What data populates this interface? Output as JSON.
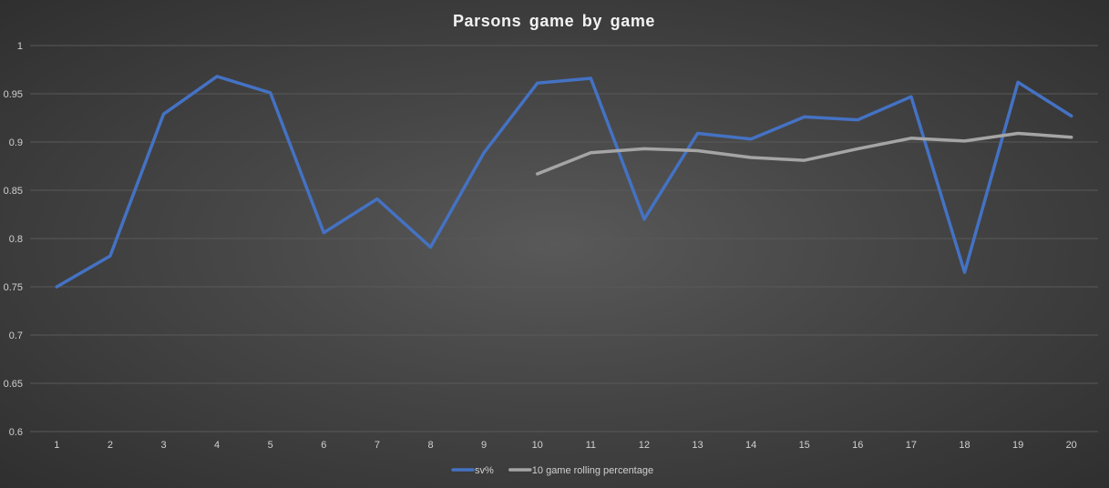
{
  "chart_data": {
    "type": "line",
    "title": "Parsons game by game",
    "xlabel": "",
    "ylabel": "",
    "categories": [
      "1",
      "2",
      "3",
      "4",
      "5",
      "6",
      "7",
      "8",
      "9",
      "10",
      "11",
      "12",
      "13",
      "14",
      "15",
      "16",
      "17",
      "18",
      "19",
      "20"
    ],
    "ylim": [
      0.6,
      1
    ],
    "yticks": [
      "0.6",
      "0.65",
      "0.7",
      "0.75",
      "0.8",
      "0.85",
      "0.9",
      "0.95",
      "1"
    ],
    "grid": true,
    "legend_position": "bottom",
    "series": [
      {
        "name": "sv%",
        "color": "#4472c4",
        "values": [
          0.75,
          0.782,
          0.929,
          0.968,
          0.951,
          0.806,
          0.841,
          0.791,
          0.889,
          0.961,
          0.966,
          0.82,
          0.909,
          0.903,
          0.926,
          0.923,
          0.947,
          0.765,
          0.962,
          0.927
        ]
      },
      {
        "name": "10 game rolling percentage",
        "color": "#a5a5a5",
        "values": [
          null,
          null,
          null,
          null,
          null,
          null,
          null,
          null,
          null,
          0.867,
          0.889,
          0.893,
          0.891,
          0.884,
          0.881,
          0.893,
          0.904,
          0.901,
          0.909,
          0.905
        ]
      }
    ]
  }
}
